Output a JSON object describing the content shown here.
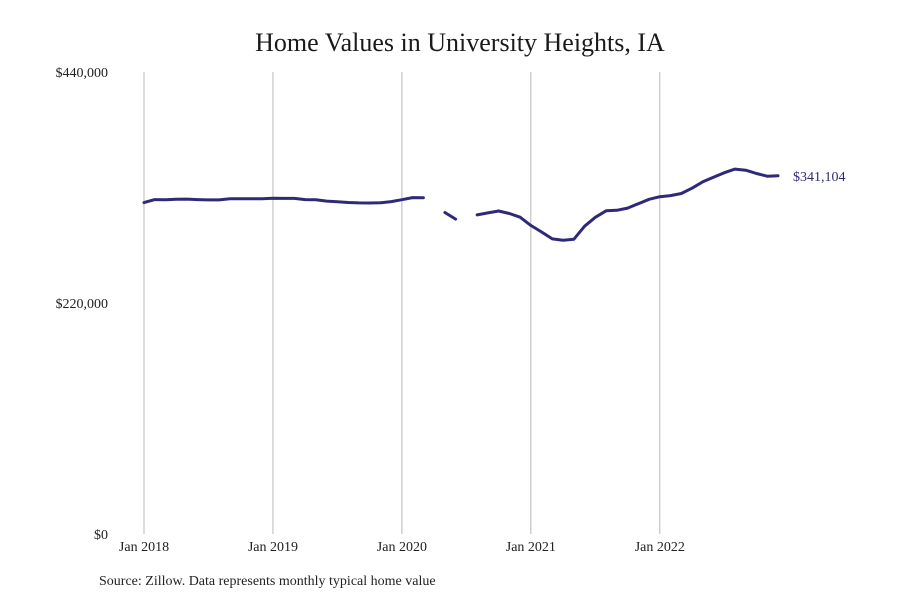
{
  "chart_data": {
    "type": "line",
    "title": "Home Values in University Heights, IA",
    "xlabel": "",
    "ylabel": "",
    "ylim": [
      0,
      440000
    ],
    "y_ticks": [
      {
        "value": 0,
        "label": "$0"
      },
      {
        "value": 220000,
        "label": "$220,000"
      },
      {
        "value": 440000,
        "label": "$440,000"
      }
    ],
    "x_ticks": [
      {
        "value": "2018-01",
        "label": "Jan 2018"
      },
      {
        "value": "2019-01",
        "label": "Jan 2019"
      },
      {
        "value": "2020-01",
        "label": "Jan 2020"
      },
      {
        "value": "2021-01",
        "label": "Jan 2021"
      },
      {
        "value": "2022-01",
        "label": "Jan 2022"
      }
    ],
    "x_range": [
      "2018-01",
      "2022-12"
    ],
    "grid": "vertical",
    "series": [
      {
        "color": "#2f2a78",
        "x": [
          "2018-01",
          "2018-02",
          "2018-03",
          "2018-04",
          "2018-05",
          "2018-06",
          "2018-07",
          "2018-08",
          "2018-09",
          "2018-10",
          "2018-11",
          "2018-12",
          "2019-01",
          "2019-02",
          "2019-03",
          "2019-04",
          "2019-05",
          "2019-06",
          "2019-07",
          "2019-08",
          "2019-09",
          "2019-10",
          "2019-11",
          "2019-12",
          "2020-01",
          "2020-02",
          "2020-03",
          "2020-04",
          "2020-05",
          "2020-06",
          "2020-07",
          "2020-08",
          "2020-09",
          "2020-10",
          "2020-11",
          "2020-12",
          "2021-01",
          "2021-02",
          "2021-03",
          "2021-04",
          "2021-05",
          "2021-06",
          "2021-07",
          "2021-08",
          "2021-09",
          "2021-10",
          "2021-11",
          "2021-12",
          "2022-01",
          "2022-02",
          "2022-03",
          "2022-04",
          "2022-05",
          "2022-06",
          "2022-07",
          "2022-08",
          "2022-09",
          "2022-10",
          "2022-11",
          "2022-12"
        ],
        "values": [
          315600,
          318500,
          318400,
          318900,
          319000,
          318500,
          318200,
          318200,
          319200,
          319200,
          319200,
          319300,
          319800,
          319600,
          319600,
          318500,
          318300,
          317000,
          316500,
          315700,
          315300,
          315200,
          315400,
          316600,
          318400,
          320400,
          320300,
          null,
          306200,
          299900,
          null,
          303900,
          305800,
          307600,
          305200,
          301700,
          293900,
          287600,
          281000,
          279700,
          280700,
          293100,
          301600,
          307800,
          308300,
          310400,
          314600,
          318800,
          321200,
          322300,
          324300,
          329300,
          335400,
          339800,
          344100,
          347500,
          346500,
          343300,
          340800,
          341104
        ]
      }
    ],
    "end_label": "$341,104",
    "source": "Source: Zillow. Data represents monthly typical home value"
  }
}
